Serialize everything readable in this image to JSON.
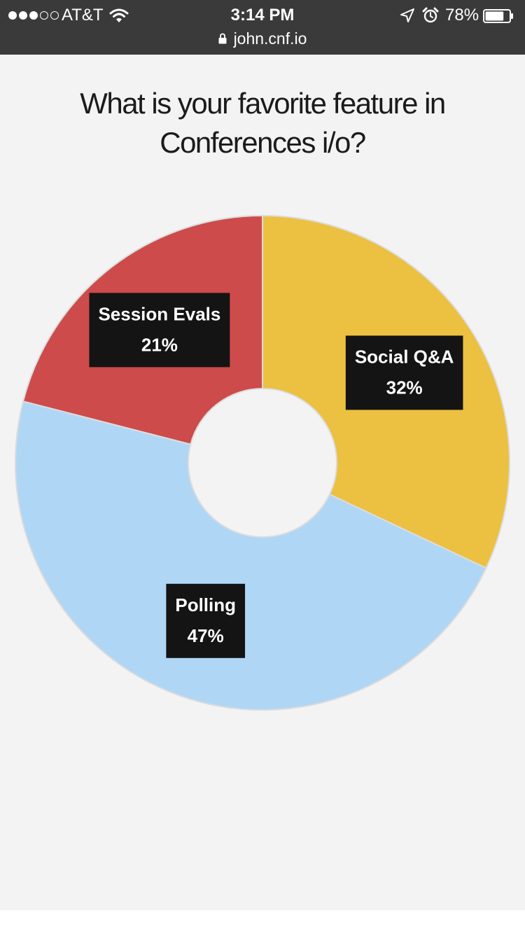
{
  "status_bar": {
    "signal_bars_filled": 3,
    "signal_bars_total": 5,
    "carrier": "AT&T",
    "time": "3:14 PM",
    "battery_percent": "78%",
    "battery_level": 0.78,
    "icons": [
      "signal-dots-icon",
      "wifi-icon",
      "location-arrow-icon",
      "alarm-clock-icon",
      "battery-icon"
    ]
  },
  "browser": {
    "url": "john.cnf.io",
    "secure_icon": "lock-icon"
  },
  "poll": {
    "question": "What is your favorite feature in Conferences i/o?"
  },
  "chart_data": {
    "type": "pie",
    "donut": true,
    "start_angle_deg": 0,
    "direction": "clockwise",
    "slices": [
      {
        "label": "Social Q&A",
        "value": 32,
        "display": "32%",
        "color": "#ecc040"
      },
      {
        "label": "Polling",
        "value": 47,
        "display": "47%",
        "color": "#b0d6f6"
      },
      {
        "label": "Session Evals",
        "value": 21,
        "display": "21%",
        "color": "#cd4b4b"
      }
    ],
    "background": "#f3f3f3",
    "label_box_color": "#141414",
    "label_text_color": "#ffffff"
  }
}
